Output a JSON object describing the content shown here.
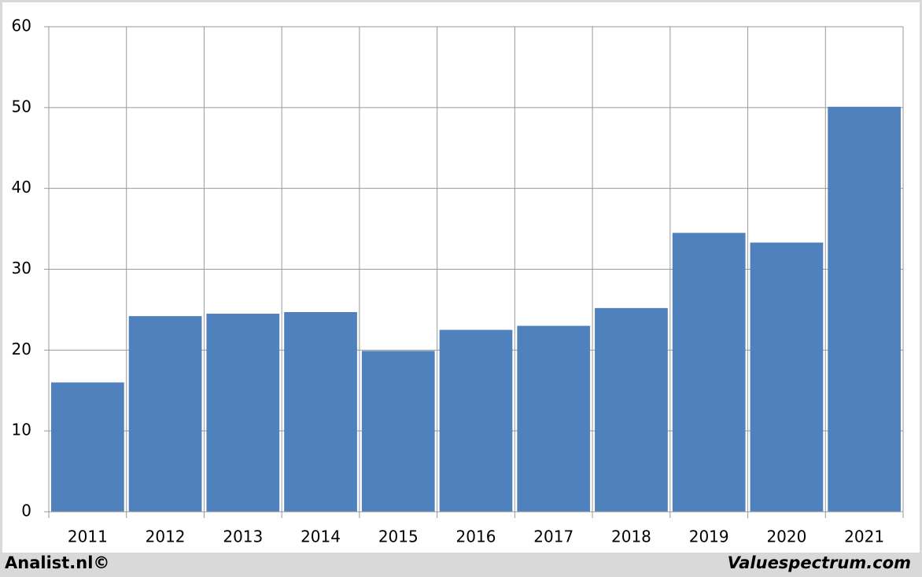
{
  "chart_data": {
    "type": "bar",
    "categories": [
      "2011",
      "2012",
      "2013",
      "2014",
      "2015",
      "2016",
      "2017",
      "2018",
      "2019",
      "2020",
      "2021"
    ],
    "values": [
      16,
      24.2,
      24.5,
      24.7,
      19.9,
      22.5,
      23.0,
      25.2,
      34.5,
      33.3,
      50.1
    ],
    "color": "#4f81bd",
    "ylim": [
      0,
      60
    ],
    "yticks": [
      0,
      10,
      20,
      30,
      40,
      50,
      60
    ],
    "grid": true
  },
  "footer": {
    "left": "Analist.nl©",
    "right": "Valuespectrum.com"
  }
}
